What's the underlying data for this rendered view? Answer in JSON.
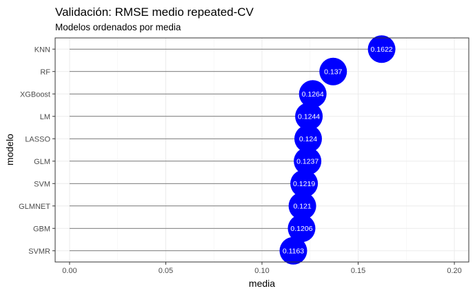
{
  "chart_data": {
    "type": "lollipop",
    "title": "Validación: RMSE medio repeated-CV",
    "subtitle": "Modelos ordenados por media",
    "xlabel": "media",
    "ylabel": "modelo",
    "xlim": [
      0,
      0.2
    ],
    "x_ticks": [
      "0.00",
      "0.05",
      "0.10",
      "0.15",
      "0.20"
    ],
    "grid": true,
    "point_color": "#0000FF",
    "categories": [
      "KNN",
      "RF",
      "XGBoost",
      "LM",
      "LASSO",
      "GLM",
      "SVM",
      "GLMNET",
      "GBM",
      "SVMR"
    ],
    "values": [
      0.1622,
      0.137,
      0.1264,
      0.1244,
      0.124,
      0.1237,
      0.1219,
      0.121,
      0.1206,
      0.1163
    ],
    "value_labels": [
      "0.1622",
      "0.137",
      "0.1264",
      "0.1244",
      "0.124",
      "0.1237",
      "0.1219",
      "0.121",
      "0.1206",
      "0.1163"
    ]
  }
}
